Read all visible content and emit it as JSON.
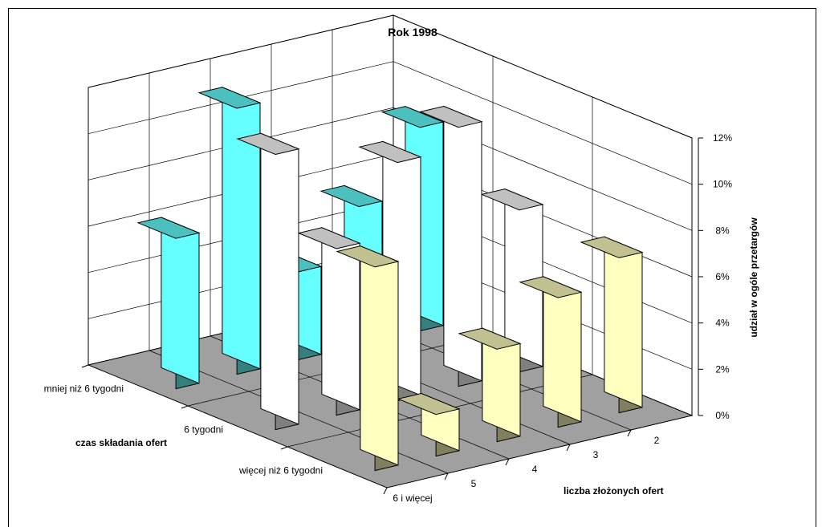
{
  "chart_data": {
    "type": "bar",
    "style": "3d-column",
    "title": "Rok 1998",
    "xlabel": "liczba złożonych ofert",
    "depth_label": "czas składania ofert",
    "ylabel": "udział w ogóle przetargów",
    "categories": [
      "6 i więcej",
      "5",
      "4",
      "3",
      "2"
    ],
    "series": [
      {
        "name": "mniej niż 6 tygodni",
        "values": [
          6.5,
          11.5,
          3.8,
          6.0,
          8.8
        ]
      },
      {
        "name": "6 tygodni",
        "values": [
          11.9,
          7.2,
          10.3,
          11.2,
          7.0
        ]
      },
      {
        "name": "więcej niż 6 tygodni",
        "values": [
          8.8,
          1.8,
          4.0,
          5.6,
          6.7
        ]
      }
    ],
    "y_ticks": [
      "0%",
      "2%",
      "4%",
      "6%",
      "8%",
      "10%",
      "12%"
    ],
    "ylim": [
      0,
      12
    ],
    "grid": true,
    "colors": {
      "mniej niż 6 tygodni": {
        "front": "#33807f",
        "side": "#66ffff",
        "top": "#4cc0bf"
      },
      "6 tygodni": {
        "front": "#808080",
        "side": "#ffffff",
        "top": "#c0c0c0"
      },
      "więcej niż 6 tygodni": {
        "front": "#808060",
        "side": "#ffffc0",
        "top": "#c0c090"
      },
      "floor": "#a0a0a0"
    }
  }
}
